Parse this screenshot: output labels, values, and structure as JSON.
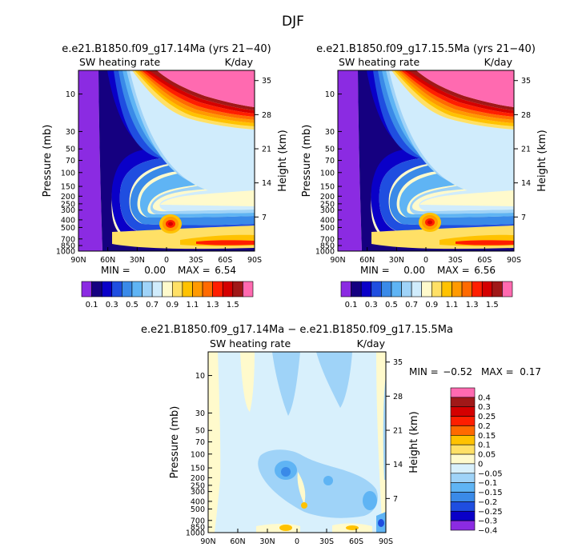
{
  "page": {
    "title": "DJF"
  },
  "colors": {
    "seq": [
      "#8b2be2",
      "#150080",
      "#0a00c8",
      "#1f4ee0",
      "#3a8ae8",
      "#5fb4f4",
      "#9fd3f8",
      "#d0ecfc",
      "#fffacc",
      "#ffe066",
      "#ffc200",
      "#ff9a00",
      "#ff6a00",
      "#ff1e00",
      "#d40000",
      "#a01818",
      "#ff6ab0"
    ],
    "diff": [
      "#8b2be2",
      "#0a00c8",
      "#1f4ee0",
      "#3a8ae8",
      "#5fb4f4",
      "#9fd3f8",
      "#d8f0fc",
      "#fffacc",
      "#ffe066",
      "#ffc200",
      "#ff6a00",
      "#ff1e00",
      "#d40000",
      "#a01818",
      "#ff6ab0"
    ]
  },
  "chart_data": [
    {
      "type": "heatmap",
      "title": "e.e21.B1850.f09_g17.14Ma (yrs 21−40)",
      "left_label": "SW heating rate",
      "right_label": "K/day",
      "ylabel": "Pressure (mb)",
      "y2label": "Height (km)",
      "x_ticks": [
        "90N",
        "60N",
        "30N",
        "0",
        "30S",
        "60S",
        "90S"
      ],
      "y_ticks": [
        "10",
        "30",
        "50",
        "70",
        "100",
        "150",
        "200",
        "250",
        "300",
        "400",
        "500",
        "700",
        "850",
        "1000"
      ],
      "y2_ticks": [
        "35",
        "28",
        "21",
        "14",
        "7"
      ],
      "stats": {
        "min_label": "MIN =",
        "min": "0.00",
        "max_label": "MAX =",
        "max": "6.54"
      },
      "colorbar_labels": [
        "0.1",
        "0.3",
        "0.5",
        "0.7",
        "0.9",
        "1.1",
        "1.3",
        "1.5"
      ]
    },
    {
      "type": "heatmap",
      "title": "e.e21.B1850.f09_g17.15.5Ma (yrs 21−40)",
      "left_label": "SW heating rate",
      "right_label": "K/day",
      "ylabel": "Pressure (mb)",
      "y2label": "Height (km)",
      "x_ticks": [
        "90N",
        "60N",
        "30N",
        "0",
        "30S",
        "60S",
        "90S"
      ],
      "y_ticks": [
        "10",
        "30",
        "50",
        "70",
        "100",
        "150",
        "200",
        "250",
        "300",
        "400",
        "500",
        "700",
        "850",
        "1000"
      ],
      "y2_ticks": [
        "35",
        "28",
        "21",
        "14",
        "7"
      ],
      "stats": {
        "min_label": "MIN =",
        "min": "0.00",
        "max_label": "MAX =",
        "max": "6.56"
      },
      "colorbar_labels": [
        "0.1",
        "0.3",
        "0.5",
        "0.7",
        "0.9",
        "1.1",
        "1.3",
        "1.5"
      ]
    },
    {
      "type": "heatmap",
      "title": "e.e21.B1850.f09_g17.14Ma − e.e21.B1850.f09_g17.15.5Ma",
      "left_label": "SW heating rate",
      "right_label": "K/day",
      "ylabel": "Pressure (mb)",
      "y2label": "Height (km)",
      "x_ticks": [
        "90N",
        "60N",
        "30N",
        "0",
        "30S",
        "60S",
        "90S"
      ],
      "y_ticks": [
        "10",
        "30",
        "50",
        "70",
        "100",
        "150",
        "200",
        "250",
        "300",
        "400",
        "500",
        "700",
        "850",
        "1000"
      ],
      "y2_ticks": [
        "35",
        "28",
        "21",
        "14",
        "7"
      ],
      "stats": {
        "min_label": "MIN =",
        "min": "−0.52",
        "max_label": "MAX =",
        "max": "0.17"
      },
      "colorbar_labels": [
        "0.4",
        "0.3",
        "0.25",
        "0.2",
        "0.15",
        "0.1",
        "0.05",
        "0",
        "−0.05",
        "−0.1",
        "−0.15",
        "−0.2",
        "−0.25",
        "−0.3",
        "−0.4"
      ]
    }
  ]
}
